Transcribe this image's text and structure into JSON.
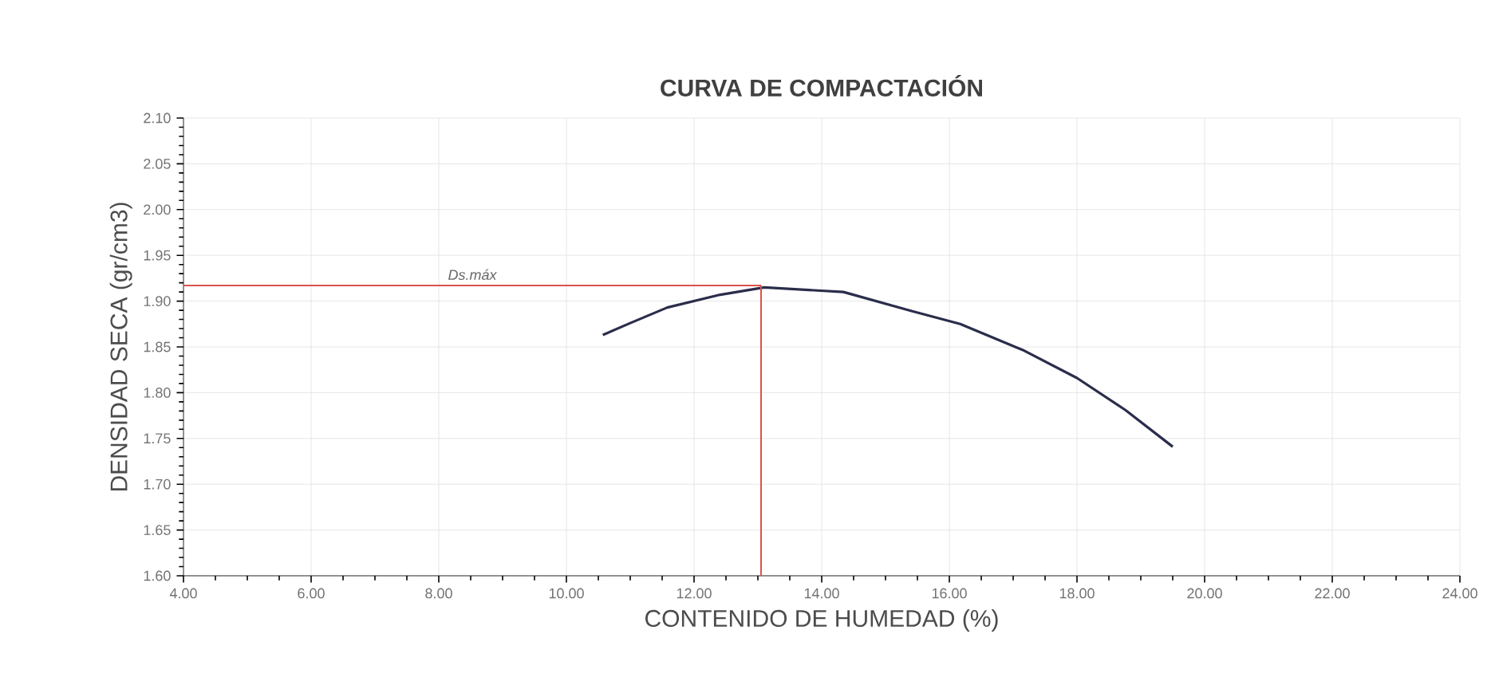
{
  "chart_data": {
    "type": "line",
    "title": "CURVA DE COMPACTACIÓN",
    "xlabel": "CONTENIDO DE HUMEDAD (%)",
    "ylabel": "DENSIDAD SECA (gr/cm3)",
    "x": [
      10.57,
      11.0,
      11.58,
      12.41,
      13.1,
      14.34,
      15.42,
      16.17,
      17.17,
      18.0,
      18.76,
      19.5
    ],
    "series": [
      {
        "color": "#2a2d4a",
        "values": [
          1.863,
          1.876,
          1.893,
          1.907,
          1.915,
          1.91,
          1.889,
          1.875,
          1.846,
          1.816,
          1.781,
          1.741
        ]
      }
    ],
    "xlim": [
      4,
      24
    ],
    "ylim": [
      1.6,
      2.1
    ],
    "xticks": [
      {
        "value": 4,
        "label": "4.00"
      },
      {
        "value": 6,
        "label": "6.00"
      },
      {
        "value": 8,
        "label": "8.00"
      },
      {
        "value": 10,
        "label": "10.00"
      },
      {
        "value": 12,
        "label": "12.00"
      },
      {
        "value": 14,
        "label": "14.00"
      },
      {
        "value": 16,
        "label": "16.00"
      },
      {
        "value": 18,
        "label": "18.00"
      },
      {
        "value": 20,
        "label": "20.00"
      },
      {
        "value": 22,
        "label": "22.00"
      },
      {
        "value": 24,
        "label": "24.00"
      }
    ],
    "yticks": [
      {
        "value": 1.6,
        "label": "1.60"
      },
      {
        "value": 1.65,
        "label": "1.65"
      },
      {
        "value": 1.7,
        "label": "1.70"
      },
      {
        "value": 1.75,
        "label": "1.75"
      },
      {
        "value": 1.8,
        "label": "1.80"
      },
      {
        "value": 1.85,
        "label": "1.85"
      },
      {
        "value": 1.9,
        "label": "1.90"
      },
      {
        "value": 1.95,
        "label": "1.95"
      },
      {
        "value": 2.0,
        "label": "2.00"
      },
      {
        "value": 2.05,
        "label": "2.05"
      },
      {
        "value": 2.1,
        "label": "2.10"
      }
    ],
    "ref_lines": [
      {
        "axis": "y",
        "value": 1.917,
        "label": "Ds.máx",
        "color": "#d9534f"
      },
      {
        "axis": "x",
        "value": 13.05,
        "color": "#d9534f"
      }
    ],
    "grid": true,
    "marker": "none",
    "line_style": "solid"
  }
}
